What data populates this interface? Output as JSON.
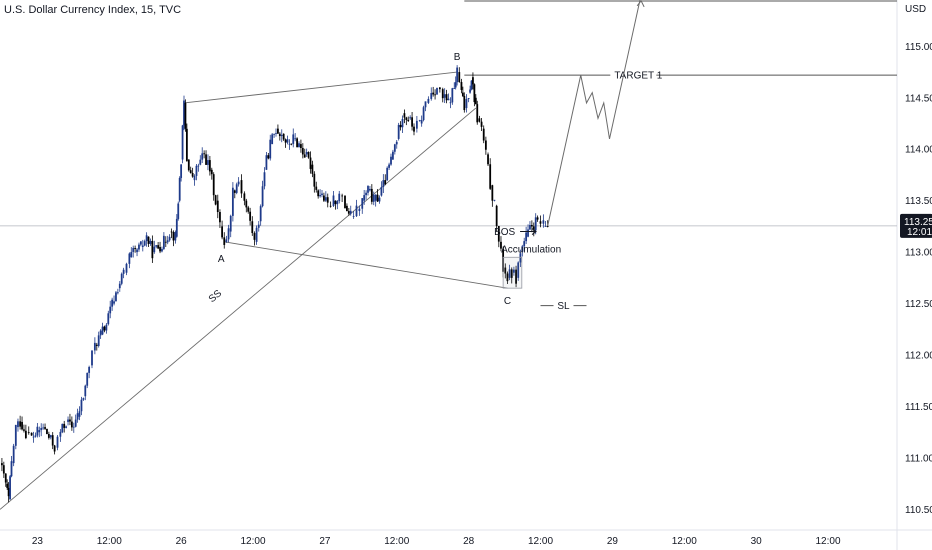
{
  "header": {
    "title": "U.S. Dollar Currency Index, 15, TVC"
  },
  "colors": {
    "up": "#1e3a8a",
    "down": "#000000",
    "line": "#7a7a7a",
    "accent": "#131722",
    "badge": "#131722"
  },
  "chart_data": {
    "type": "candlestick",
    "title": "U.S. Dollar Currency Index, 15, TVC",
    "y_unit": "USD",
    "ylim": [
      110.3,
      115.45
    ],
    "y_ticks": [
      "115.000",
      "114.500",
      "114.000",
      "113.500",
      "113.000",
      "112.500",
      "112.000",
      "111.500",
      "111.000",
      "110.500"
    ],
    "y_tick_values": [
      115.0,
      114.5,
      114.0,
      113.5,
      113.0,
      112.5,
      112.0,
      111.5,
      111.0,
      110.5
    ],
    "x_ticks": [
      "23",
      "12:00",
      "26",
      "12:00",
      "27",
      "12:00",
      "28",
      "12:00",
      "29",
      "12:00",
      "30",
      "12:00"
    ],
    "x_tick_positions": [
      1,
      1.5,
      2,
      2.5,
      3,
      3.5,
      4,
      4.5,
      5,
      5.5,
      6,
      6.5
    ],
    "xlim": [
      0.74,
      6.98
    ],
    "current_price": {
      "value": 113.255,
      "label": "113.255",
      "countdown": "12:01"
    },
    "price_path": [
      [
        0.74,
        110.95
      ],
      [
        0.78,
        110.75
      ],
      [
        0.8,
        110.6
      ],
      [
        0.82,
        110.95
      ],
      [
        0.85,
        111.3
      ],
      [
        0.88,
        111.35
      ],
      [
        0.92,
        111.25
      ],
      [
        0.96,
        111.2
      ],
      [
        1.0,
        111.25
      ],
      [
        1.04,
        111.3
      ],
      [
        1.08,
        111.2
      ],
      [
        1.12,
        111.1
      ],
      [
        1.16,
        111.25
      ],
      [
        1.2,
        111.35
      ],
      [
        1.24,
        111.3
      ],
      [
        1.28,
        111.4
      ],
      [
        1.32,
        111.6
      ],
      [
        1.36,
        111.9
      ],
      [
        1.4,
        112.1
      ],
      [
        1.44,
        112.2
      ],
      [
        1.48,
        112.3
      ],
      [
        1.52,
        112.5
      ],
      [
        1.56,
        112.65
      ],
      [
        1.6,
        112.8
      ],
      [
        1.64,
        112.95
      ],
      [
        1.68,
        113.0
      ],
      [
        1.72,
        113.05
      ],
      [
        1.76,
        113.15
      ],
      [
        1.8,
        113.0
      ],
      [
        1.84,
        113.05
      ],
      [
        1.88,
        113.1
      ],
      [
        1.92,
        113.2
      ],
      [
        1.96,
        113.15
      ],
      [
        1.98,
        113.5
      ],
      [
        2.0,
        113.9
      ],
      [
        2.02,
        114.45
      ],
      [
        2.04,
        113.9
      ],
      [
        2.08,
        113.7
      ],
      [
        2.12,
        113.85
      ],
      [
        2.16,
        113.95
      ],
      [
        2.2,
        113.8
      ],
      [
        2.24,
        113.5
      ],
      [
        2.27,
        113.25
      ],
      [
        2.3,
        113.1
      ],
      [
        2.33,
        113.2
      ],
      [
        2.36,
        113.6
      ],
      [
        2.4,
        113.7
      ],
      [
        2.44,
        113.5
      ],
      [
        2.48,
        113.3
      ],
      [
        2.51,
        113.1
      ],
      [
        2.54,
        113.3
      ],
      [
        2.58,
        113.8
      ],
      [
        2.62,
        114.05
      ],
      [
        2.66,
        114.2
      ],
      [
        2.7,
        114.15
      ],
      [
        2.74,
        114.05
      ],
      [
        2.78,
        114.1
      ],
      [
        2.82,
        114.05
      ],
      [
        2.86,
        113.95
      ],
      [
        2.9,
        113.85
      ],
      [
        2.94,
        113.6
      ],
      [
        2.98,
        113.55
      ],
      [
        3.02,
        113.45
      ],
      [
        3.06,
        113.5
      ],
      [
        3.1,
        113.55
      ],
      [
        3.14,
        113.45
      ],
      [
        3.18,
        113.35
      ],
      [
        3.22,
        113.4
      ],
      [
        3.26,
        113.5
      ],
      [
        3.3,
        113.6
      ],
      [
        3.34,
        113.5
      ],
      [
        3.38,
        113.55
      ],
      [
        3.42,
        113.7
      ],
      [
        3.46,
        113.9
      ],
      [
        3.5,
        114.1
      ],
      [
        3.54,
        114.35
      ],
      [
        3.58,
        114.3
      ],
      [
        3.62,
        114.2
      ],
      [
        3.66,
        114.25
      ],
      [
        3.7,
        114.45
      ],
      [
        3.74,
        114.55
      ],
      [
        3.78,
        114.6
      ],
      [
        3.82,
        114.5
      ],
      [
        3.86,
        114.45
      ],
      [
        3.9,
        114.6
      ],
      [
        3.92,
        114.75
      ],
      [
        3.95,
        114.55
      ],
      [
        3.97,
        114.4
      ],
      [
        4.0,
        114.55
      ],
      [
        4.02,
        114.7
      ],
      [
        4.04,
        114.5
      ],
      [
        4.06,
        114.3
      ],
      [
        4.09,
        114.2
      ],
      [
        4.12,
        113.95
      ],
      [
        4.15,
        113.65
      ],
      [
        4.18,
        113.45
      ],
      [
        4.21,
        113.1
      ],
      [
        4.24,
        112.85
      ],
      [
        4.27,
        112.75
      ],
      [
        4.3,
        112.8
      ],
      [
        4.33,
        112.75
      ],
      [
        4.36,
        113.0
      ],
      [
        4.4,
        113.15
      ],
      [
        4.44,
        113.25
      ],
      [
        4.48,
        113.3
      ],
      [
        4.52,
        113.25
      ],
      [
        4.55,
        113.255
      ]
    ],
    "annotations": {
      "A": {
        "label": "A",
        "x": 2.3,
        "y": 113.1
      },
      "B": {
        "label": "B",
        "x": 3.92,
        "y": 114.75
      },
      "C": {
        "label": "C",
        "x": 4.27,
        "y": 112.65
      },
      "target": {
        "label": "TARGET 1",
        "y": 114.72,
        "x1": 3.97,
        "x2": 6.98
      },
      "bos": {
        "label": "BOS",
        "y": 113.2,
        "x": 4.33
      },
      "accumulation": {
        "label": "Accumulation",
        "x1": 4.24,
        "x2": 4.37,
        "y1": 112.65,
        "y2": 112.95
      },
      "sl": {
        "label": "SL",
        "y": 112.48,
        "x1": 4.5,
        "x2": 4.82
      },
      "ss": {
        "label": "SS",
        "x": 2.25,
        "y": 112.55
      },
      "top_box": {
        "x1": 3.97,
        "x2": 6.98,
        "y": 115.45
      }
    },
    "trend_lines": [
      {
        "name": "wedge-upper",
        "from": [
          2.02,
          114.45
        ],
        "to": [
          3.92,
          114.75
        ]
      },
      {
        "name": "wedge-lower",
        "from": [
          2.3,
          113.1
        ],
        "to": [
          4.27,
          112.65
        ]
      },
      {
        "name": "rising-support",
        "from": [
          0.74,
          110.5
        ],
        "to": [
          4.05,
          114.4
        ]
      }
    ],
    "projection_path": [
      [
        4.55,
        113.255
      ],
      [
        4.78,
        114.72
      ],
      [
        4.82,
        114.45
      ],
      [
        4.86,
        114.55
      ],
      [
        4.9,
        114.3
      ],
      [
        4.94,
        114.45
      ],
      [
        4.98,
        114.1
      ],
      [
        5.2,
        115.5
      ]
    ]
  }
}
